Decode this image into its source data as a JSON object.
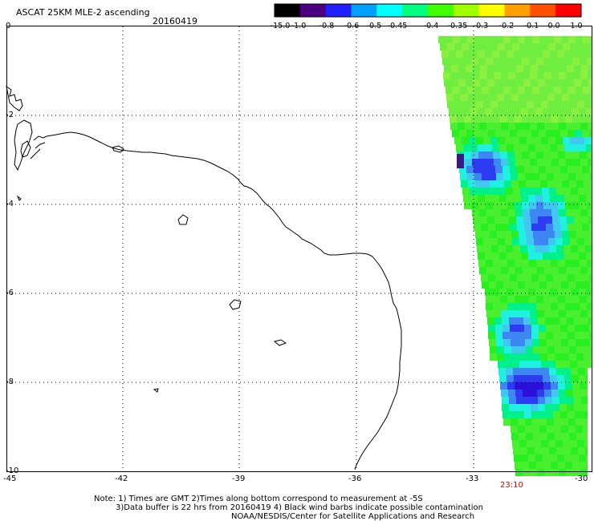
{
  "header": {
    "title": "ASCAT 25KM MLE-2 ascending",
    "date": "20160419"
  },
  "colorbar": {
    "labels": [
      "-15.0",
      "-1.0",
      "-0.8",
      "-0.6",
      "-0.5",
      "-0.45",
      "-0.4",
      "-0.35",
      "-0.3",
      "-0.2",
      "-0.1",
      "0.0",
      "1.0"
    ],
    "colors": [
      "#000000",
      "#4b0082",
      "#2020ff",
      "#00a0ff",
      "#00ffff",
      "#00ff80",
      "#40ff00",
      "#a0ff00",
      "#ffff00",
      "#ffa000",
      "#ff5000",
      "#ff0000"
    ]
  },
  "axes": {
    "lat_labels": [
      "0",
      "-2",
      "-4",
      "-6",
      "-8",
      "-10"
    ],
    "lon_labels": [
      "-45",
      "-42",
      "-39",
      "-36",
      "-33",
      "-30"
    ]
  },
  "pass_time": "23:10",
  "notes": {
    "line1": "Note: 1) Times are GMT 2)Times along bottom correspond to measurement at -5S",
    "line2": "3)Data buffer is 22 hrs from 20160419 4) Black wind barbs indicate possible contamination",
    "line3": "NOAA/NESDIS/Center for Satellite Applications and Research"
  },
  "colors": {
    "pass_time": "#cc0000",
    "grid": "#000000"
  }
}
